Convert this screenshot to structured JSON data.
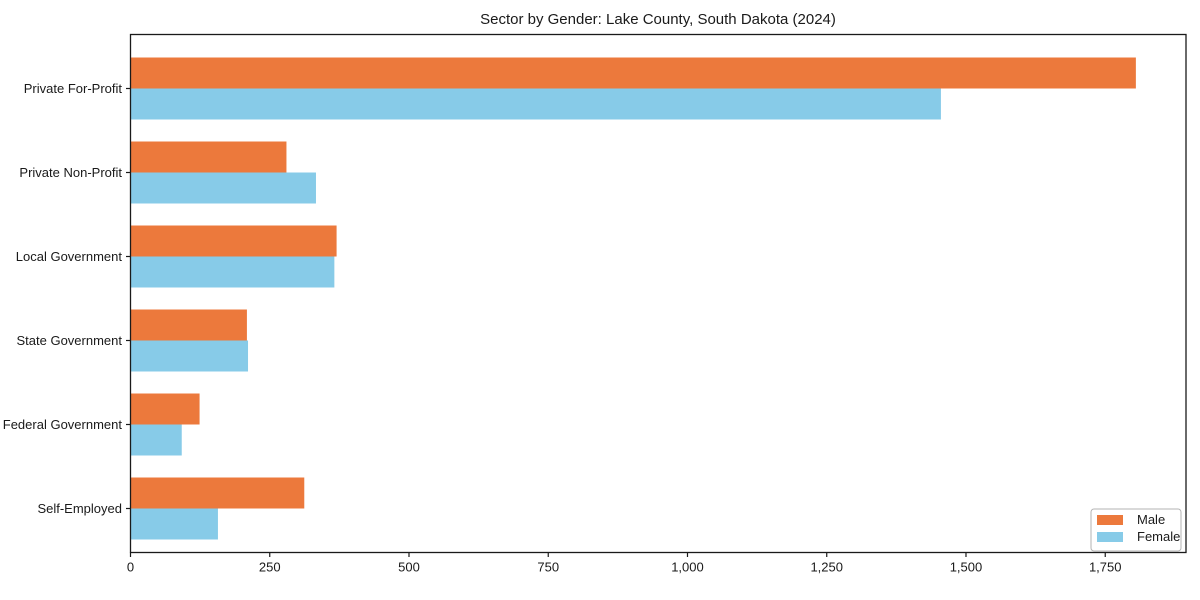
{
  "chart_data": {
    "type": "bar",
    "orientation": "horizontal",
    "title": "Sector by Gender: Lake County, South Dakota (2024)",
    "categories": [
      "Private For-Profit",
      "Private Non-Profit",
      "Local Government",
      "State Government",
      "Federal Government",
      "Self-Employed"
    ],
    "series": [
      {
        "name": "Male",
        "color": "#ec793c",
        "values": [
          1805,
          280,
          370,
          209,
          124,
          312
        ]
      },
      {
        "name": "Female",
        "color": "#87cbe8",
        "values": [
          1455,
          333,
          366,
          211,
          92,
          157
        ]
      }
    ],
    "xlabel": "",
    "ylabel": "",
    "xlim": [
      0,
      1895
    ],
    "xticks": [
      0,
      250,
      500,
      750,
      1000,
      1250,
      1500,
      1750
    ],
    "xtick_labels": [
      "0",
      "250",
      "500",
      "750",
      "1,000",
      "1,250",
      "1,500",
      "1,750"
    ],
    "grid": false,
    "legend": {
      "position": "lower right",
      "entries": [
        "Male",
        "Female"
      ]
    },
    "axis_color": "#1a1a1a",
    "text_color": "#1a1a1a",
    "background_color": "#ffffff"
  }
}
